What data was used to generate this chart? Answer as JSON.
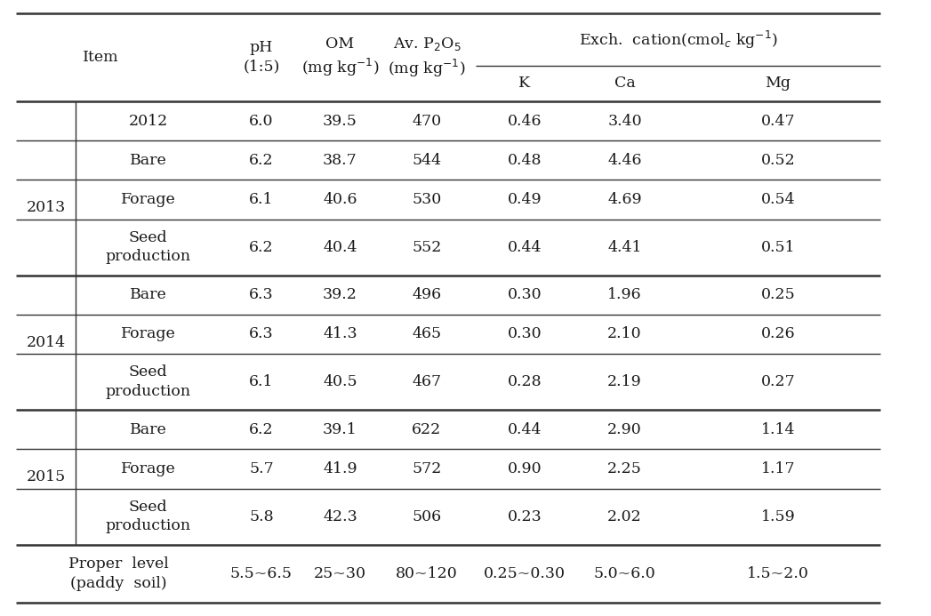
{
  "header_item": "Item",
  "header_ph": "pH\n(1:5)",
  "header_om": "OM\n(mg kg⁻¹)",
  "header_avp": "Av. P₂O₅\n(mg kg⁻¹)",
  "header_exch": "Exch.  cation(cmolₑ kg⁻¹)",
  "header_k": "K",
  "header_ca": "Ca",
  "header_mg": "Mg",
  "rows": [
    {
      "year": "",
      "item": "2012",
      "ph": "6.0",
      "om": "39.5",
      "avp": "470",
      "k": "0.46",
      "ca": "3.40",
      "mg": "0.47"
    },
    {
      "year": "2013",
      "item": "Bare",
      "ph": "6.2",
      "om": "38.7",
      "avp": "544",
      "k": "0.48",
      "ca": "4.46",
      "mg": "0.52"
    },
    {
      "year": "2013",
      "item": "Forage",
      "ph": "6.1",
      "om": "40.6",
      "avp": "530",
      "k": "0.49",
      "ca": "4.69",
      "mg": "0.54"
    },
    {
      "year": "2013",
      "item": "Seed\nproduction",
      "ph": "6.2",
      "om": "40.4",
      "avp": "552",
      "k": "0.44",
      "ca": "4.41",
      "mg": "0.51"
    },
    {
      "year": "2014",
      "item": "Bare",
      "ph": "6.3",
      "om": "39.2",
      "avp": "496",
      "k": "0.30",
      "ca": "1.96",
      "mg": "0.25"
    },
    {
      "year": "2014",
      "item": "Forage",
      "ph": "6.3",
      "om": "41.3",
      "avp": "465",
      "k": "0.30",
      "ca": "2.10",
      "mg": "0.26"
    },
    {
      "year": "2014",
      "item": "Seed\nproduction",
      "ph": "6.1",
      "om": "40.5",
      "avp": "467",
      "k": "0.28",
      "ca": "2.19",
      "mg": "0.27"
    },
    {
      "year": "2015",
      "item": "Bare",
      "ph": "6.2",
      "om": "39.1",
      "avp": "622",
      "k": "0.44",
      "ca": "2.90",
      "mg": "1.14"
    },
    {
      "year": "2015",
      "item": "Forage",
      "ph": "5.7",
      "om": "41.9",
      "avp": "572",
      "k": "0.90",
      "ca": "2.25",
      "mg": "1.17"
    },
    {
      "year": "2015",
      "item": "Seed\nproduction",
      "ph": "5.8",
      "om": "42.3",
      "avp": "506",
      "k": "0.23",
      "ca": "2.02",
      "mg": "1.59"
    },
    {
      "year": "Proper  level\n(paddy  soil)",
      "item": "",
      "ph": "5.5~6.5",
      "om": "25~30",
      "avp": "80~120",
      "k": "0.25~0.30",
      "ca": "5.0~6.0",
      "mg": "1.5~2.0"
    }
  ],
  "bg_color": "#ffffff",
  "text_color": "#1a1a1a",
  "line_color": "#333333",
  "font_size": 12.5,
  "font_family": "serif"
}
